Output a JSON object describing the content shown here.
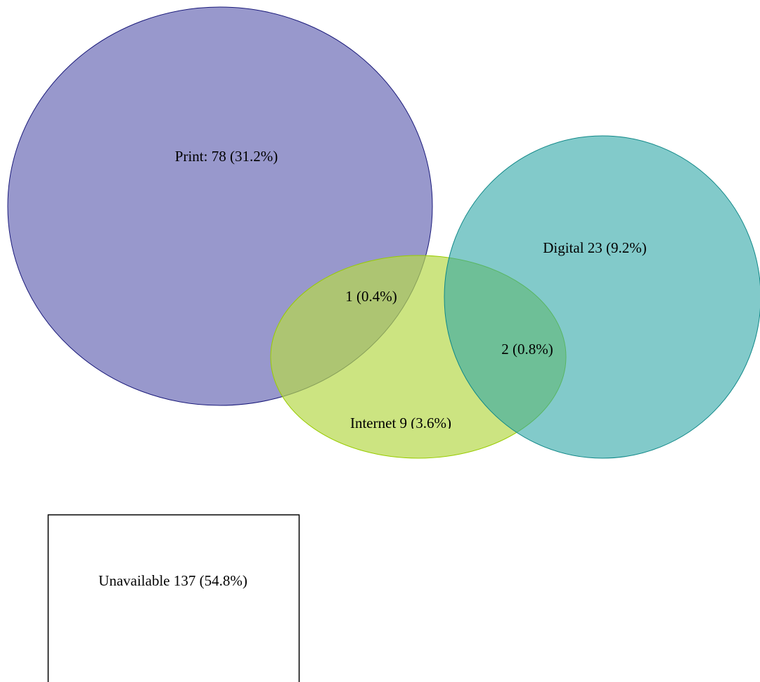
{
  "sets": [
    {
      "label": "Print: 78 (31.2%)"
    },
    {
      "label": "Digital 23 (9.2%)"
    },
    {
      "label": "Internet 9 (3.6%)"
    }
  ],
  "intersections": [
    {
      "label": "1 (0.4%)"
    },
    {
      "label": "2 (0.8%)"
    }
  ],
  "outside": {
    "label": "Unavailable 137 (54.8%)"
  }
}
